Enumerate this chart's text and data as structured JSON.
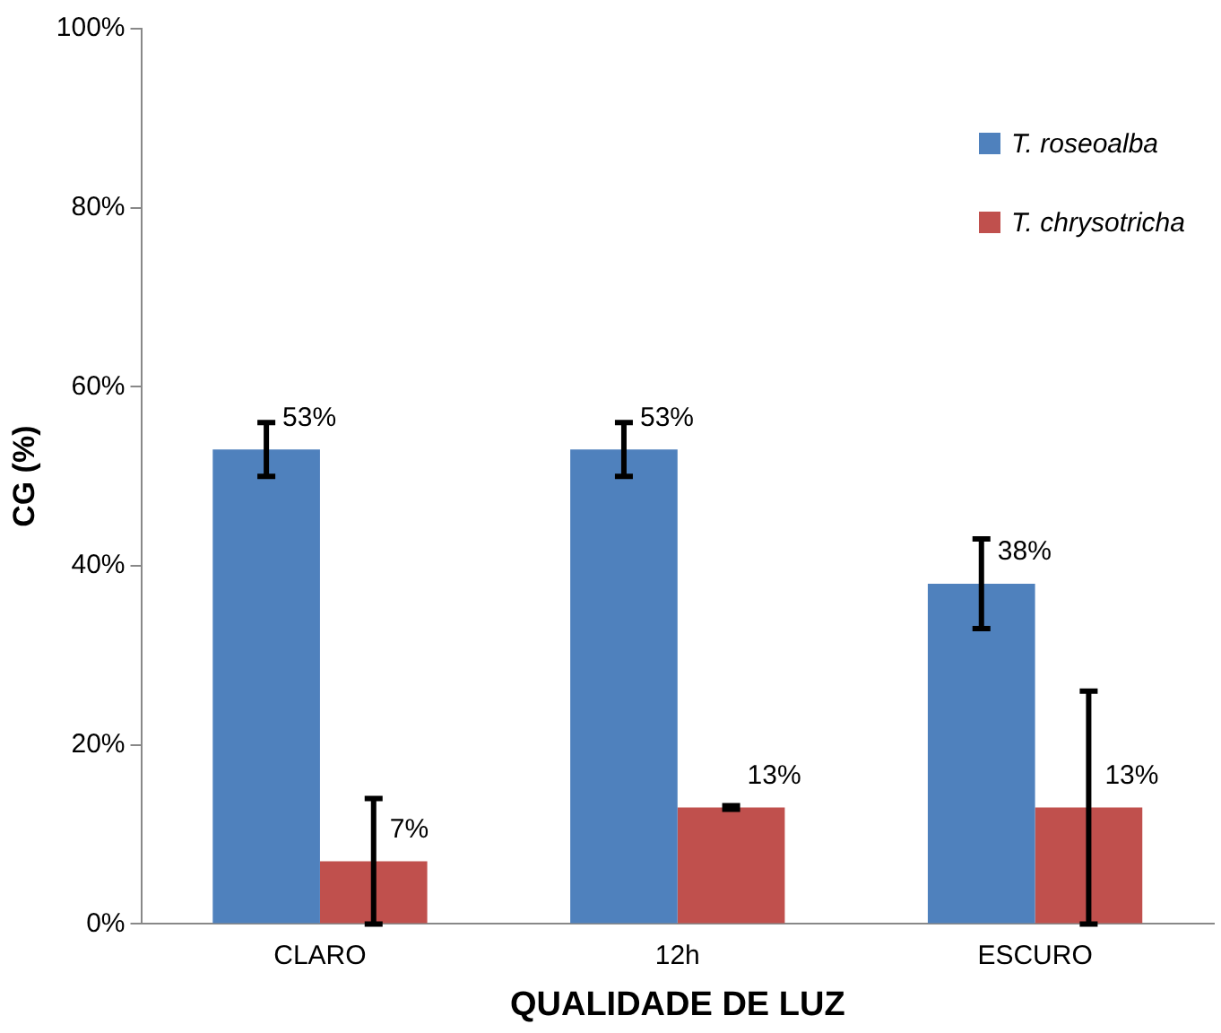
{
  "chart_data": {
    "type": "bar",
    "xlabel": "QUALIDADE DE LUZ",
    "ylabel": "CG (%)",
    "categories": [
      "CLARO",
      "12h",
      "ESCURO"
    ],
    "series": [
      {
        "name": "T. roseoalba",
        "color": "#4f81bd",
        "values": [
          53,
          53,
          38
        ],
        "errors": [
          3,
          3,
          5
        ],
        "value_labels": [
          "53%",
          "53%",
          "38%"
        ]
      },
      {
        "name": "T. chrysotricha",
        "color": "#c0504d",
        "values": [
          7,
          13,
          13
        ],
        "errors": [
          7,
          0.2,
          13
        ],
        "value_labels": [
          "7%",
          "13%",
          "13%"
        ]
      }
    ],
    "ylim": [
      0,
      100
    ],
    "yticks": [
      {
        "value": 0,
        "label": "0%"
      },
      {
        "value": 20,
        "label": "20%"
      },
      {
        "value": 40,
        "label": "40%"
      },
      {
        "value": 60,
        "label": "60%"
      },
      {
        "value": 80,
        "label": "80%"
      },
      {
        "value": 100,
        "label": "100%"
      }
    ],
    "grid": false,
    "legend": "top right"
  }
}
